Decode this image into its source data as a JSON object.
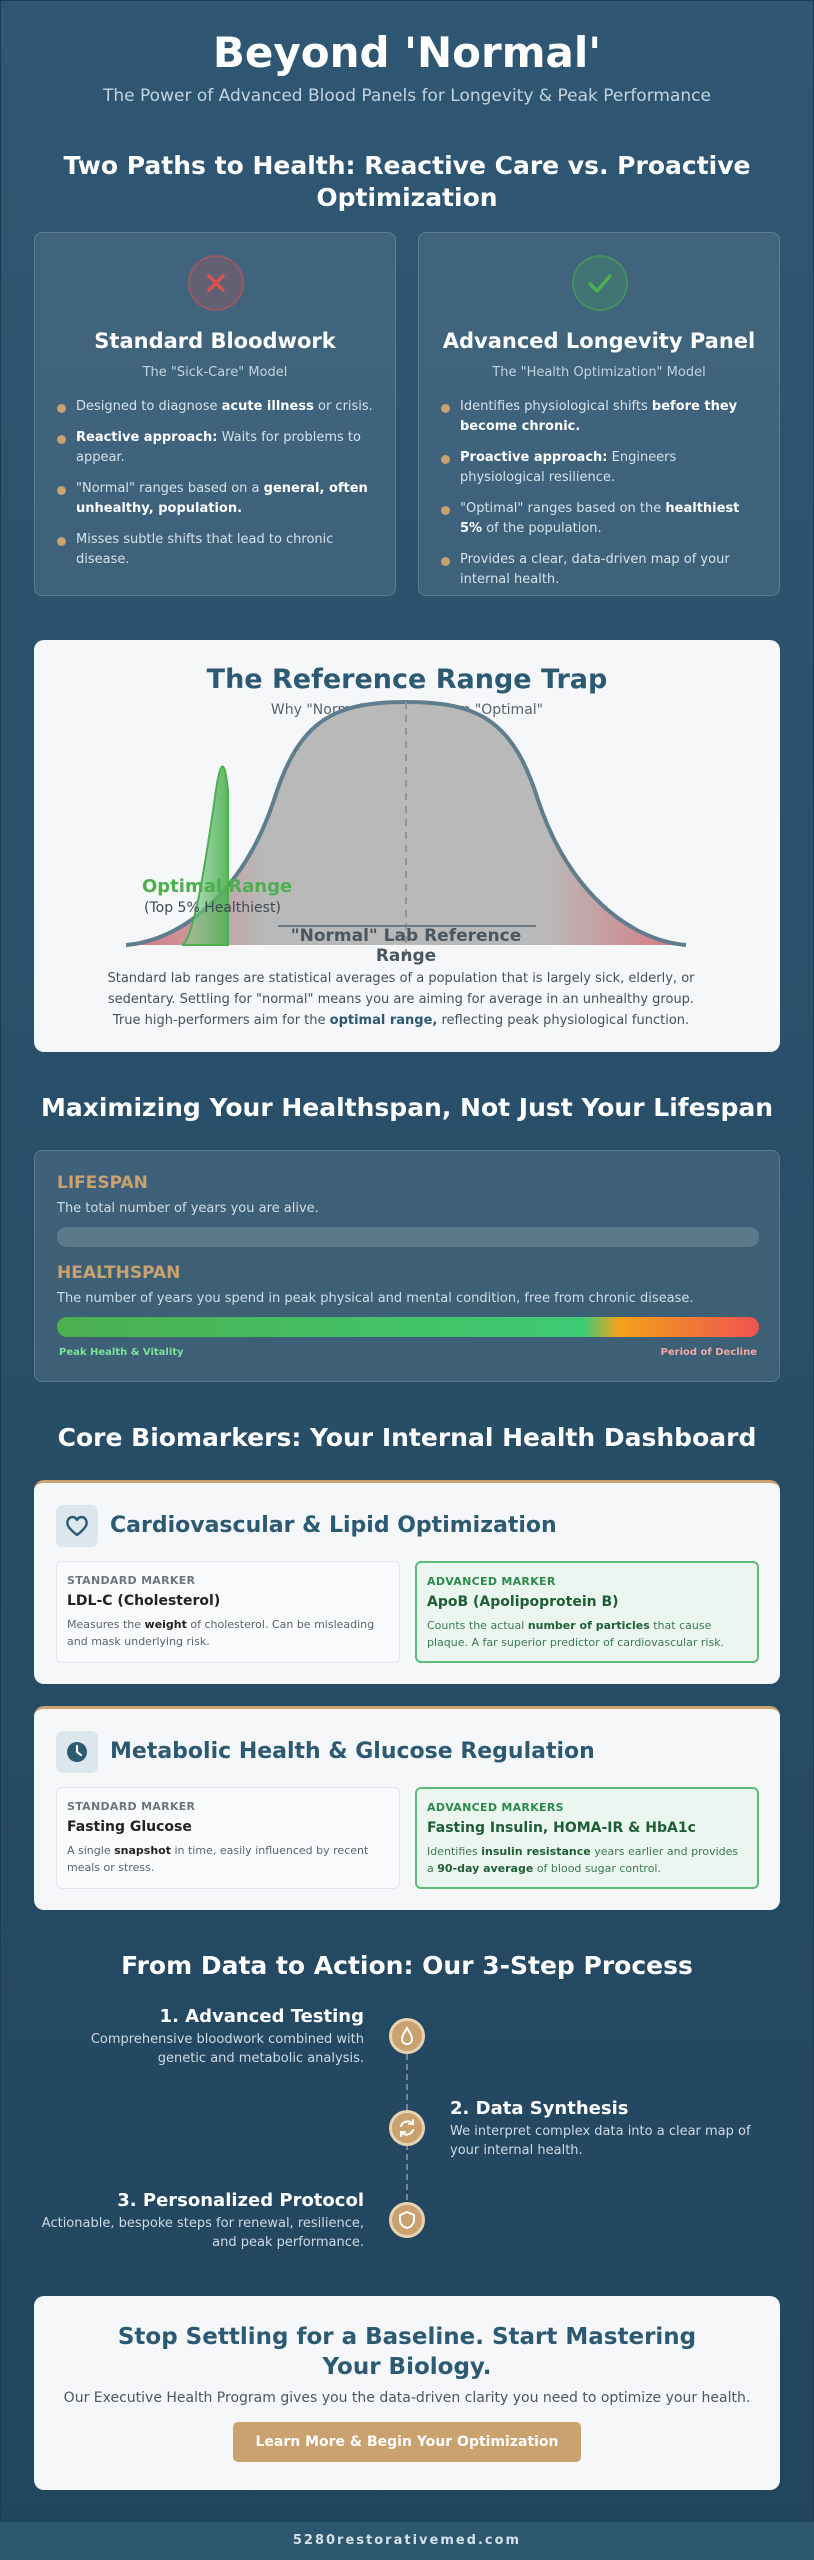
{
  "hero": {
    "title": "Beyond 'Normal'",
    "subtitle": "The Power of Advanced Blood Panels for Longevity & Peak Performance"
  },
  "paths": {
    "title": "Two Paths to Health: Reactive Care vs. Proactive Optimization",
    "standard": {
      "icon": "x-icon",
      "title": "Standard Bloodwork",
      "model": "The \"Sick-Care\" Model",
      "items": [
        {
          "pre": "Designed to diagnose ",
          "bold": "acute illness",
          "post": " or crisis."
        },
        {
          "pre": "",
          "bold": "Reactive approach:",
          "post": " Waits for problems to appear."
        },
        {
          "pre": "\"Normal\" ranges based on a ",
          "bold": "general, often unhealthy, population.",
          "post": ""
        },
        {
          "pre": "Misses subtle shifts that lead to chronic disease.",
          "bold": "",
          "post": ""
        }
      ]
    },
    "advanced": {
      "icon": "check-icon",
      "title": "Advanced Longevity Panel",
      "model": "The \"Health Optimization\" Model",
      "items": [
        {
          "pre": "Identifies physiological shifts ",
          "bold": "before they become chronic.",
          "post": ""
        },
        {
          "pre": "",
          "bold": "Proactive approach:",
          "post": " Engineers physiological resilience."
        },
        {
          "pre": "\"Optimal\" ranges based on the ",
          "bold": "healthiest 5%",
          "post": " of the population."
        },
        {
          "pre": "Provides a clear, data-driven map of your internal health.",
          "bold": "",
          "post": ""
        }
      ]
    }
  },
  "reference": {
    "title": "The Reference Range Trap",
    "subtitle": "Why \"Normal\" Doesn't Mean \"Optimal\"",
    "optimal_label": "Optimal Range",
    "optimal_sub": "(Top 5% Healthiest)",
    "normal_label": "\"Normal\" Lab Reference Range",
    "text_pre": "Standard lab ranges are statistical averages of a population that is largely sick, elderly, or sedentary. Settling for \"normal\" means you are aiming for average in an unhealthy group. True high-performers aim for the ",
    "text_bold": "optimal range,",
    "text_post": " reflecting peak physiological function.",
    "colors": {
      "optimal": "#4caf50",
      "curve": "#5f7d8c",
      "fill": "#b9b9b9",
      "edge": "#d9777f"
    }
  },
  "span": {
    "title": "Maximizing Your Healthspan, Not Just Your Lifespan",
    "lifespan_label": "LIFESPAN",
    "lifespan_desc": "The total number of years you are alive.",
    "healthspan_label": "HEALTHSPAN",
    "healthspan_desc": "The number of years you spend in peak physical and mental condition, free from chronic disease.",
    "peak_label": "Peak Health & Vitality",
    "decline_label": "Period of Decline"
  },
  "biomarkers": {
    "title": "Core Biomarkers: Your Internal Health Dashboard",
    "cardio": {
      "icon": "heart-icon",
      "title": "Cardiovascular & Lipid Optimization",
      "std_kicker": "STANDARD MARKER",
      "std_name": "LDL-C (Cholesterol)",
      "std_desc_pre": "Measures the ",
      "std_desc_bold": "weight",
      "std_desc_post": " of cholesterol. Can be misleading and mask underlying risk.",
      "adv_kicker": "ADVANCED MARKER",
      "adv_name": "ApoB (Apolipoprotein B)",
      "adv_desc_pre": "Counts the actual ",
      "adv_desc_bold": "number of particles",
      "adv_desc_post": " that cause plaque. A far superior predictor of cardiovascular risk."
    },
    "metabolic": {
      "icon": "clock-icon",
      "title": "Metabolic Health & Glucose Regulation",
      "std_kicker": "STANDARD MARKER",
      "std_name": "Fasting Glucose",
      "std_desc_pre": "A single ",
      "std_desc_bold": "snapshot",
      "std_desc_post": " in time, easily influenced by recent meals or stress.",
      "adv_kicker": "ADVANCED MARKERS",
      "adv_name": "Fasting Insulin, HOMA-IR & HbA1c",
      "adv_desc_pre": "Identifies ",
      "adv_desc_bold": "insulin resistance",
      "adv_desc_post": " years earlier and provides a ",
      "adv_desc_bold2": "90-day average",
      "adv_desc_post2": " of blood sugar control."
    }
  },
  "process": {
    "title": "From Data to Action: Our 3-Step Process",
    "steps": [
      {
        "icon": "drop-icon",
        "title": "1. Advanced Testing",
        "desc": "Comprehensive bloodwork combined with genetic and metabolic analysis."
      },
      {
        "icon": "refresh-icon",
        "title": "2. Data Synthesis",
        "desc": "We interpret complex data into a clear map of your internal health."
      },
      {
        "icon": "shield-icon",
        "title": "3. Personalized Protocol",
        "desc": "Actionable, bespoke steps for renewal, resilience, and peak performance."
      }
    ]
  },
  "cta": {
    "title": "Stop Settling for a Baseline. Start Mastering Your Biology.",
    "text": "Our Executive Health Program gives you the data-driven clarity you need to optimize your health.",
    "button": "Learn More & Begin Your Optimization"
  },
  "footer": {
    "site": "5280restorativemed.com"
  }
}
